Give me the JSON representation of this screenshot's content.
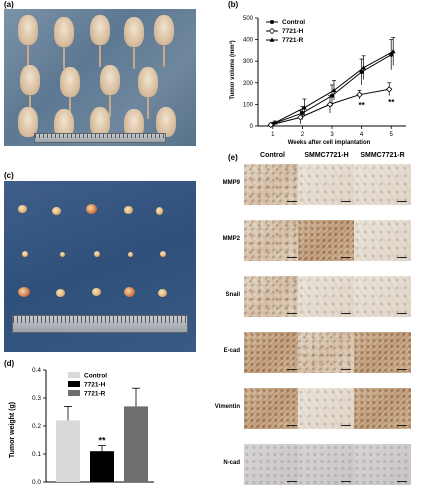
{
  "panels": {
    "a": "(a)",
    "b": "(b)",
    "c": "(c)",
    "d": "(d)",
    "e": "(e)"
  },
  "chart_data": [
    {
      "type": "line",
      "xlabel": "Weeks after cell implantation",
      "ylabel": "Tumor volume (mm³)",
      "x": [
        1,
        2,
        3,
        4,
        5
      ],
      "xlim": [
        0.5,
        5.5
      ],
      "ylim": [
        0,
        500
      ],
      "yticks": [
        0,
        100,
        200,
        300,
        400,
        500
      ],
      "series": [
        {
          "name": "Control",
          "values": [
            10,
            60,
            140,
            250,
            330
          ],
          "errors": [
            5,
            30,
            50,
            60,
            70
          ],
          "marker": "filled-circle"
        },
        {
          "name": "7721-H",
          "values": [
            5,
            40,
            100,
            145,
            170
          ],
          "errors": [
            5,
            30,
            40,
            20,
            30
          ],
          "marker": "open-diamond"
        },
        {
          "name": "7721-R",
          "values": [
            15,
            85,
            165,
            270,
            345
          ],
          "errors": [
            8,
            40,
            45,
            55,
            65
          ],
          "marker": "filled-triangle"
        }
      ],
      "annotations": [
        "**",
        "**"
      ],
      "legend": "top-left"
    },
    {
      "type": "bar",
      "ylabel": "Tumor weight (g)",
      "categories": [
        "Control",
        "7721-H",
        "7721-R"
      ],
      "values": [
        0.22,
        0.11,
        0.27
      ],
      "errors": [
        0.05,
        0.02,
        0.065
      ],
      "colors": [
        "#d9d9d9",
        "#000000",
        "#6e6e6e"
      ],
      "ylim": [
        0,
        0.4
      ],
      "yticks": [
        "0.0",
        "0.1",
        "0.2",
        "0.3",
        "0.4"
      ],
      "annotations": [
        "**"
      ],
      "legend": "top-left"
    }
  ],
  "ihc": {
    "columns": [
      "Control",
      "SMMC7721-H",
      "SMMC7721-R"
    ],
    "rows": [
      "MMP9",
      "MMP2",
      "Snail",
      "E-cad",
      "Vimentin",
      "N-cad"
    ]
  }
}
